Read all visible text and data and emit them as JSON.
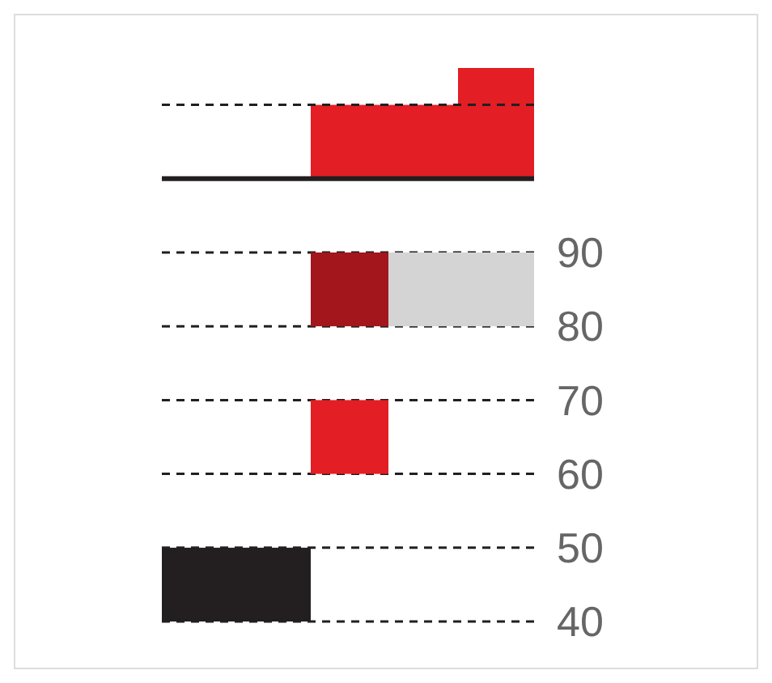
{
  "chart_data": {
    "type": "bar",
    "categories": [
      null,
      null,
      null,
      null
    ],
    "series": [
      {
        "color": "#231f20",
        "values": [
          10,
          null,
          null,
          null
        ],
        "base": [
          40,
          null,
          null,
          null
        ]
      },
      {
        "color": "#e31e24",
        "values": [
          null,
          10,
          null,
          null
        ],
        "base": [
          null,
          60,
          null,
          null
        ]
      },
      {
        "color": "#a3161c",
        "values": [
          null,
          10,
          null,
          null
        ],
        "base": [
          null,
          80,
          null,
          null
        ]
      },
      {
        "color": "#d4d4d4",
        "values": [
          null,
          null,
          10,
          10
        ],
        "base": [
          null,
          null,
          80,
          80
        ]
      },
      {
        "color": "#e31e24",
        "values": [
          null,
          10,
          10,
          15
        ],
        "base": [
          null,
          100,
          100,
          100
        ]
      }
    ],
    "ylim": [
      40,
      115
    ],
    "yticks": [
      40,
      50,
      60,
      70,
      80,
      90
    ],
    "grid": "y",
    "line_style": "dashed",
    "ref_lines": [
      {
        "axis": "y",
        "value": 100,
        "line_style": "solid",
        "color": "#231f20"
      },
      {
        "axis": "y",
        "value": 110,
        "line_style": "dashed",
        "color": "#231f20"
      }
    ]
  }
}
